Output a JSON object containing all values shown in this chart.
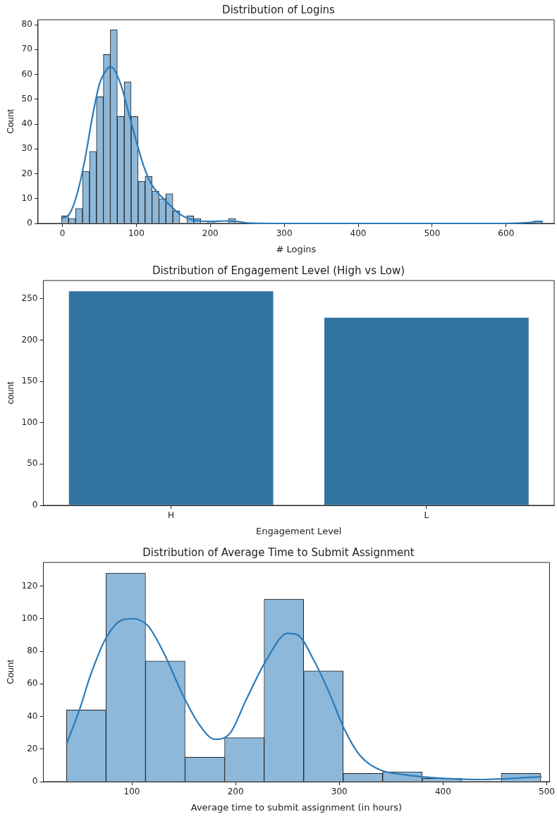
{
  "chart_data": [
    {
      "type": "histogram",
      "title": "Distribution of Logins",
      "xlabel": "# Logins",
      "ylabel": "Count",
      "xlim": [
        -33,
        665
      ],
      "ylim": [
        0,
        82
      ],
      "xticks": [
        0,
        100,
        200,
        300,
        400,
        500,
        600
      ],
      "yticks": [
        0,
        10,
        20,
        30,
        40,
        50,
        60,
        70,
        80
      ],
      "series": [
        {
          "type": "histogram",
          "color": "#8db8da",
          "bins": [
            -1,
            8.4,
            17.8,
            27.2,
            36.6,
            46,
            55.4,
            64.8,
            74.2,
            83.6,
            93,
            102.4,
            111.8,
            121.2,
            130.6,
            140,
            149.4,
            158.8,
            168.2,
            177.6,
            187,
            196.4,
            205.8,
            215.2,
            224.6,
            234,
            243.4,
            252.8,
            262.2,
            271.6,
            281,
            290.4,
            299.8,
            309.2,
            318.6,
            328,
            337.4,
            346.8,
            356.2,
            365.6,
            375,
            384.4,
            393.8,
            403.2,
            412.6,
            422,
            431.4,
            440.8,
            450.2,
            459.6,
            469,
            478.4,
            487.8,
            497.2,
            506.6,
            516,
            525.4,
            534.8,
            544.2,
            553.6,
            563,
            572.4,
            581.8,
            591.2,
            600.6,
            610,
            619.4,
            628.8,
            638.2,
            647.6
          ],
          "values": [
            3,
            2,
            6,
            21,
            29,
            51,
            68,
            78,
            43,
            57,
            43,
            17,
            19,
            13,
            10,
            12,
            5,
            0,
            3,
            2,
            0,
            1,
            0,
            0,
            2,
            0,
            0,
            0,
            0,
            0,
            0,
            0,
            0,
            0,
            0,
            0,
            0,
            0,
            0,
            0,
            0,
            0,
            0,
            0,
            0,
            0,
            0,
            0,
            0,
            0,
            0,
            0,
            0,
            0,
            0,
            0,
            0,
            0,
            0,
            0,
            0,
            0,
            0,
            0,
            0,
            0,
            0,
            0,
            1
          ]
        },
        {
          "type": "line",
          "color": "#2b7bba",
          "x": [
            0,
            10,
            20,
            30,
            40,
            50,
            60,
            65,
            70,
            80,
            90,
            100,
            110,
            120,
            130,
            140,
            150,
            160,
            170,
            180,
            200,
            220,
            235,
            250,
            300,
            400,
            500,
            600,
            630,
            645,
            650
          ],
          "values": [
            2,
            4,
            12,
            25,
            42,
            56,
            62,
            63,
            62,
            55,
            44,
            33,
            23,
            16,
            12,
            9,
            6,
            3.5,
            2,
            1.2,
            0.8,
            1,
            0.8,
            0.2,
            0,
            0,
            0,
            0,
            0.3,
            0.8,
            0.7
          ]
        }
      ]
    },
    {
      "type": "bar",
      "title": "Distribution of Engagement Level (High vs Low)",
      "xlabel": "Engagement Level",
      "ylabel": "count",
      "categories": [
        "H",
        "L"
      ],
      "values": [
        259,
        227
      ],
      "color": "#3274a1",
      "ylim": [
        0,
        272
      ],
      "yticks": [
        0,
        50,
        100,
        150,
        200,
        250
      ]
    },
    {
      "type": "histogram",
      "title": "Distribution of Average Time to Submit Assignment",
      "xlabel": "Average time to submit assignment (in hours)",
      "ylabel": "Count",
      "xlim": [
        14.7,
        502.7
      ],
      "ylim": [
        0,
        134.5
      ],
      "xticks": [
        100,
        200,
        300,
        400,
        500
      ],
      "yticks": [
        0,
        20,
        40,
        60,
        80,
        100,
        120
      ],
      "series": [
        {
          "type": "histogram",
          "color": "#8db8da",
          "bins": [
            37,
            75.1,
            113.2,
            151.3,
            189.4,
            227.5,
            265.6,
            303.7,
            341.8,
            379.9,
            418,
            456.1,
            494.2
          ],
          "values": [
            44,
            128,
            74,
            15,
            27,
            112,
            68,
            5,
            6,
            2,
            0,
            5
          ]
        },
        {
          "type": "line",
          "color": "#2b7bba",
          "x": [
            37,
            50,
            60,
            75,
            90,
            100,
            115,
            130,
            150,
            165,
            180,
            195,
            210,
            230,
            250,
            260,
            275,
            290,
            305,
            320,
            340,
            360,
            380,
            400,
            420,
            440,
            460,
            480,
            495
          ],
          "values": [
            23,
            45,
            65,
            88,
            99,
            100,
            96,
            80,
            52,
            35,
            26,
            30,
            50,
            75,
            91,
            90,
            75,
            55,
            32,
            16,
            7,
            4.5,
            3,
            2,
            1.5,
            1.3,
            1.8,
            2.5,
            3
          ]
        }
      ]
    }
  ]
}
